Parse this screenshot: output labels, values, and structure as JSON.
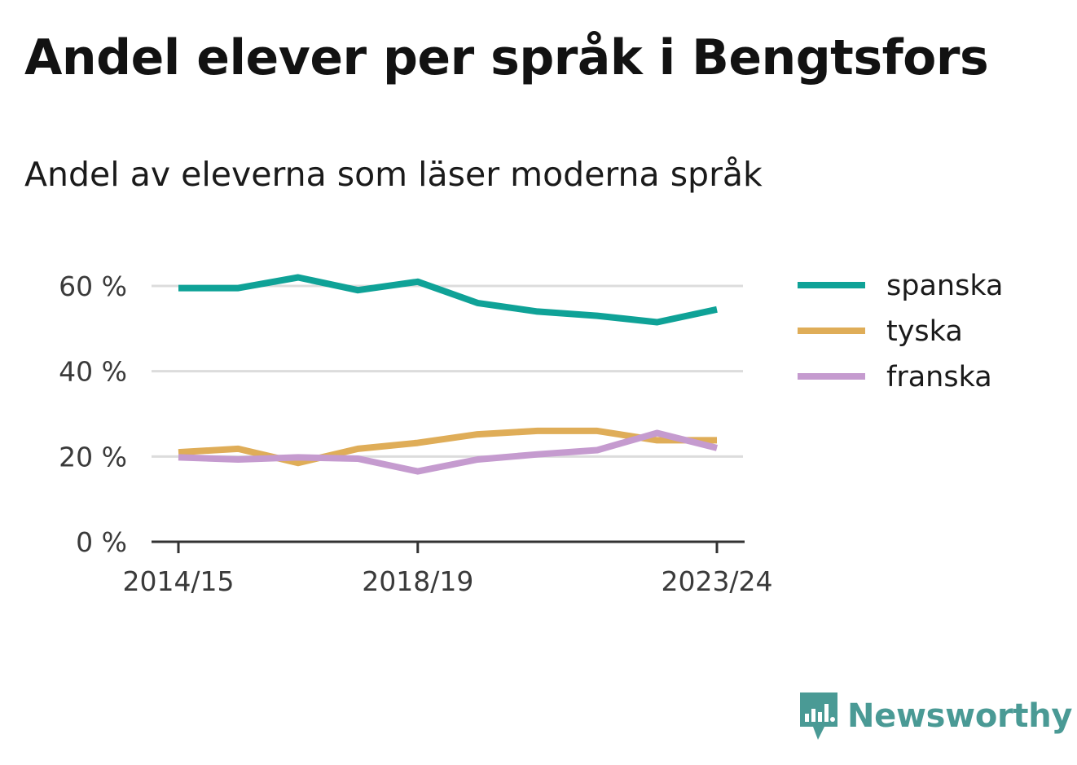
{
  "title": "Andel elever per språk i Bengtsfors",
  "subtitle": "Andel av eleverna som läser moderna språk",
  "brand": {
    "name": "Newsworthy",
    "color": "#4a9a95",
    "icon": "newsworthy-logo-icon"
  },
  "chart_data": {
    "type": "line",
    "title": "",
    "xlabel": "",
    "ylabel": "",
    "x_tick_labels": [
      "2014/15",
      "2018/19",
      "2023/24"
    ],
    "x_tick_indices": [
      0,
      4,
      9
    ],
    "y_ticks": [
      0,
      20,
      40,
      60
    ],
    "y_tick_labels": [
      "0 %",
      "20 %",
      "40 %",
      "60 %"
    ],
    "ylim": [
      0,
      70
    ],
    "grid": "horizontal",
    "legend_position": "right",
    "x_points": 10,
    "series": [
      {
        "name": "spanska",
        "color": "#0fa297",
        "values": [
          59.5,
          59.5,
          62,
          59,
          61,
          56,
          54,
          53,
          51.5,
          54.5
        ]
      },
      {
        "name": "tyska",
        "color": "#dfad58",
        "values": [
          21,
          21.8,
          18.5,
          21.8,
          23.2,
          25.2,
          26,
          26,
          23.8,
          23.8
        ]
      },
      {
        "name": "franska",
        "color": "#c59bcf",
        "values": [
          19.8,
          19.3,
          19.8,
          19.5,
          16.5,
          19.3,
          20.5,
          21.5,
          25.5,
          22
        ]
      }
    ]
  }
}
